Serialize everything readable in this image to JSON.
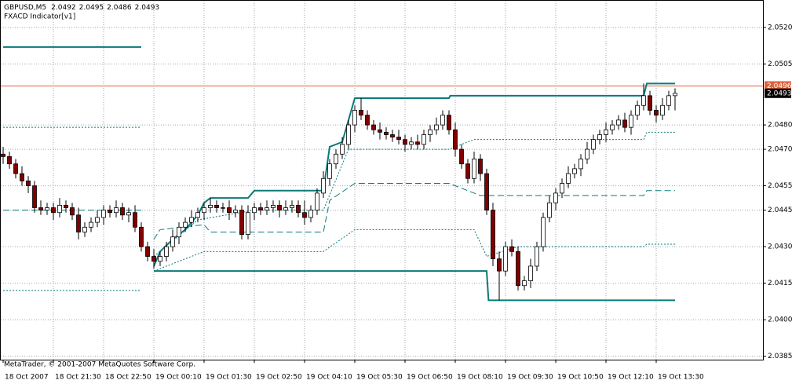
{
  "chart_data": {
    "type": "candlestick",
    "symbol": "GBPUSD,M5",
    "indicator": "FXACD Indicator[v1]",
    "footer": "MetaTrader, © 2001-2007 MetaQuotes Software Corp.",
    "categories": [
      "18 Oct 2007",
      null,
      null,
      null,
      null,
      null,
      null,
      null,
      "18 Oct 21:30",
      null,
      null,
      null,
      null,
      null,
      null,
      null,
      "18 Oct 22:50",
      null,
      null,
      null,
      null,
      null,
      null,
      null,
      "19 Oct 00:10",
      null,
      null,
      null,
      null,
      null,
      null,
      null,
      "19 Oct 01:30",
      null,
      null,
      null,
      null,
      null,
      null,
      null,
      "19 Oct 02:50",
      null,
      null,
      null,
      null,
      null,
      null,
      null,
      "19 Oct 04:10",
      null,
      null,
      null,
      null,
      null,
      null,
      null,
      "19 Oct 05:30",
      null,
      null,
      null,
      null,
      null,
      null,
      null,
      "19 Oct 06:50",
      null,
      null,
      null,
      null,
      null,
      null,
      null,
      "19 Oct 08:10",
      null,
      null,
      null,
      null,
      null,
      null,
      null,
      "19 Oct 09:30",
      null,
      null,
      null,
      null,
      null,
      null,
      null,
      "19 Oct 10:50",
      null,
      null,
      null,
      null,
      null,
      null,
      null,
      "19 Oct 12:10",
      null,
      null,
      null,
      null,
      null,
      null,
      null,
      "19 Oct 13:30",
      null,
      null,
      null
    ],
    "open": [
      2.0468,
      2.0467,
      2.0464,
      2.046,
      2.0457,
      2.0455,
      2.0446,
      2.0445,
      2.0446,
      2.0444,
      2.0447,
      2.0446,
      2.0443,
      2.0436,
      2.0438,
      2.044,
      2.0442,
      2.0445,
      2.0444,
      2.0446,
      2.0443,
      2.0444,
      2.0438,
      2.043,
      2.0426,
      2.0424,
      2.0426,
      2.043,
      2.0434,
      2.0438,
      2.044,
      2.0442,
      2.0444,
      2.0446,
      2.0447,
      2.0446,
      2.0446,
      2.0444,
      2.0445,
      2.0435,
      2.0444,
      2.0446,
      2.0445,
      2.0446,
      2.0447,
      2.0445,
      2.0446,
      2.0447,
      2.0444,
      2.0442,
      2.0445,
      2.0452,
      2.0458,
      2.0464,
      2.0468,
      2.0472,
      2.048,
      2.0486,
      2.0484,
      2.048,
      2.0478,
      2.0477,
      2.0476,
      2.0475,
      2.0474,
      2.0472,
      2.0473,
      2.0472,
      2.0476,
      2.0478,
      2.048,
      2.0484,
      2.0478,
      2.047,
      2.0464,
      2.0458,
      2.0466,
      2.046,
      2.0445,
      2.0425,
      2.042,
      2.043,
      2.0428,
      2.0414,
      2.0416,
      2.0422,
      2.043,
      2.0442,
      2.0448,
      2.0452,
      2.0456,
      2.046,
      2.0462,
      2.0466,
      2.047,
      2.0474,
      2.0476,
      2.0478,
      2.048,
      2.0482,
      2.0479,
      2.0484,
      2.0488,
      2.0492,
      2.0486,
      2.0484,
      2.0488,
      2.0492
    ],
    "high": [
      2.0471,
      2.0469,
      2.0466,
      2.0463,
      2.0459,
      2.0457,
      2.0449,
      2.0448,
      2.0448,
      2.045,
      2.0449,
      2.0448,
      2.0446,
      2.044,
      2.0442,
      2.0445,
      2.0447,
      2.0447,
      2.0449,
      2.0448,
      2.0446,
      2.0447,
      2.044,
      2.0432,
      2.0429,
      2.0428,
      2.0432,
      2.0437,
      2.044,
      2.0442,
      2.0445,
      2.0446,
      2.0448,
      2.045,
      2.0449,
      2.0448,
      2.0449,
      2.0447,
      2.0447,
      2.0447,
      2.0448,
      2.0448,
      2.0449,
      2.0449,
      2.0449,
      2.0449,
      2.0449,
      2.0449,
      2.0449,
      2.0447,
      2.0454,
      2.0461,
      2.0466,
      2.047,
      2.0475,
      2.0482,
      2.0488,
      2.0491,
      2.0486,
      2.0482,
      2.0481,
      2.0479,
      2.0478,
      2.0478,
      2.0476,
      2.0475,
      2.0476,
      2.0478,
      2.048,
      2.0483,
      2.0486,
      2.0486,
      2.0481,
      2.0472,
      2.0466,
      2.0469,
      2.0468,
      2.0462,
      2.0448,
      2.0428,
      2.0432,
      2.0433,
      2.043,
      2.0418,
      2.0425,
      2.0432,
      2.0444,
      2.0451,
      2.0454,
      2.0458,
      2.0463,
      2.0464,
      2.0468,
      2.0473,
      2.0476,
      2.0478,
      2.0481,
      2.0482,
      2.0484,
      2.0485,
      2.0486,
      2.049,
      2.0497,
      2.0494,
      2.0488,
      2.0491,
      2.0494,
      2.0495
    ],
    "low": [
      2.0464,
      2.0462,
      2.0458,
      2.0455,
      2.0452,
      2.0444,
      2.0443,
      2.0443,
      2.0441,
      2.0442,
      2.0444,
      2.0441,
      2.0433,
      2.0434,
      2.0436,
      2.0438,
      2.0439,
      2.0442,
      2.0442,
      2.0441,
      2.044,
      2.0436,
      2.0428,
      2.0424,
      2.0421,
      2.0422,
      2.0424,
      2.0428,
      2.0431,
      2.0436,
      2.0438,
      2.044,
      2.0441,
      2.0444,
      2.0444,
      2.0444,
      2.0441,
      2.0442,
      2.0433,
      2.0433,
      2.0441,
      2.0443,
      2.0443,
      2.0444,
      2.0442,
      2.0443,
      2.0444,
      2.0442,
      2.0439,
      2.044,
      2.0443,
      2.045,
      2.0455,
      2.0462,
      2.0466,
      2.047,
      2.0477,
      2.0482,
      2.0478,
      2.0476,
      2.0474,
      2.0474,
      2.0473,
      2.0472,
      2.0469,
      2.047,
      2.047,
      2.047,
      2.0473,
      2.0476,
      2.0478,
      2.0476,
      2.0467,
      2.0462,
      2.0456,
      2.0456,
      2.0457,
      2.0443,
      2.0422,
      2.0408,
      2.0418,
      2.0426,
      2.0412,
      2.0412,
      2.0413,
      2.042,
      2.0428,
      2.044,
      2.0445,
      2.045,
      2.0454,
      2.0458,
      2.0459,
      2.0464,
      2.0468,
      2.0472,
      2.0473,
      2.0476,
      2.0478,
      2.0477,
      2.0476,
      2.0482,
      2.0486,
      2.0484,
      2.0481,
      2.0482,
      2.0486,
      2.0486
    ],
    "close": [
      2.0467,
      2.0464,
      2.046,
      2.0457,
      2.0455,
      2.0446,
      2.0445,
      2.0446,
      2.0444,
      2.0447,
      2.0446,
      2.0443,
      2.0436,
      2.0438,
      2.044,
      2.0442,
      2.0445,
      2.0444,
      2.0446,
      2.0443,
      2.0444,
      2.0438,
      2.043,
      2.0426,
      2.0424,
      2.0426,
      2.043,
      2.0434,
      2.0438,
      2.044,
      2.0442,
      2.0444,
      2.0446,
      2.0447,
      2.0446,
      2.0446,
      2.0444,
      2.0445,
      2.0435,
      2.0444,
      2.0446,
      2.0445,
      2.0446,
      2.0447,
      2.0445,
      2.0446,
      2.0447,
      2.0444,
      2.0442,
      2.0445,
      2.0452,
      2.0458,
      2.0464,
      2.0468,
      2.0472,
      2.048,
      2.0486,
      2.0484,
      2.048,
      2.0478,
      2.0477,
      2.0476,
      2.0475,
      2.0474,
      2.0472,
      2.0473,
      2.0472,
      2.0476,
      2.0478,
      2.048,
      2.0484,
      2.0478,
      2.047,
      2.0464,
      2.0458,
      2.0466,
      2.046,
      2.0445,
      2.0425,
      2.042,
      2.043,
      2.0428,
      2.0414,
      2.0416,
      2.0422,
      2.043,
      2.0442,
      2.0448,
      2.0452,
      2.0456,
      2.046,
      2.0462,
      2.0466,
      2.047,
      2.0474,
      2.0476,
      2.0478,
      2.048,
      2.0482,
      2.0479,
      2.0484,
      2.0488,
      2.0492,
      2.0486,
      2.0484,
      2.0488,
      2.0492,
      2.0493
    ],
    "up_color": "#ffffff",
    "down_color": "#800000",
    "ask": 2.0496,
    "ask_color": "#e0613a",
    "lines": [
      {
        "style": "solid",
        "color": "#0a7a78",
        "x": [
          0,
          22,
          null,
          24,
          25,
          27,
          29,
          31,
          32,
          33,
          39,
          40,
          51,
          52,
          54,
          55,
          56,
          71,
          71.2,
          102,
          102.5,
          107
        ],
        "values": [
          2.0512,
          2.0512,
          null,
          2.0422,
          2.0428,
          2.0433,
          2.0437,
          2.0443,
          2.0448,
          2.045,
          2.045,
          2.0453,
          2.0453,
          2.0471,
          2.0473,
          2.0482,
          2.0491,
          2.0491,
          2.0492,
          2.0492,
          2.0497,
          2.0497
        ]
      },
      {
        "style": "solid",
        "color": "#0a7a78",
        "x": [
          24,
          77,
          77.3,
          107
        ],
        "values": [
          2.042,
          2.042,
          2.0408,
          2.0408
        ]
      },
      {
        "style": "dotted",
        "color": "#0a7a78",
        "x": [
          0,
          22,
          null,
          0,
          22,
          null,
          24,
          31,
          40,
          51,
          55,
          71,
          75,
          102,
          102.5,
          107,
          null,
          24,
          32,
          51,
          56,
          75,
          77,
          82,
          102,
          102.5,
          107
        ],
        "values": [
          2.0479,
          2.0479,
          null,
          2.0412,
          2.0412,
          null,
          2.0426,
          2.0441,
          2.0445,
          2.0445,
          2.047,
          2.047,
          2.0474,
          2.0474,
          2.0477,
          2.0477,
          null,
          2.042,
          2.0428,
          2.0428,
          2.0437,
          2.0437,
          2.0426,
          2.043,
          2.043,
          2.0431,
          2.0431
        ]
      },
      {
        "style": "dashed",
        "color": "#0a7a78",
        "x": [
          0,
          22,
          null,
          24,
          25,
          32,
          33,
          51,
          52,
          56,
          71,
          76,
          102,
          102.5,
          107
        ],
        "values": [
          2.0445,
          2.0445,
          null,
          2.0433,
          2.0437,
          2.0439,
          2.0436,
          2.0436,
          2.0449,
          2.0456,
          2.0456,
          2.0451,
          2.0451,
          2.0453,
          2.0453
        ]
      }
    ],
    "ylim": [
      2.03836,
      2.05313
    ],
    "yticks": [
      {
        "value": 2.052,
        "label": "2.0520"
      },
      {
        "value": 2.0505,
        "label": "2.0505"
      },
      {
        "value": 2.048,
        "label": "2.0480"
      },
      {
        "value": 2.047,
        "label": "2.0470"
      },
      {
        "value": 2.0455,
        "label": "2.0455"
      },
      {
        "value": 2.0445,
        "label": "2.0445"
      },
      {
        "value": 2.043,
        "label": "2.0430"
      },
      {
        "value": 2.0415,
        "label": "2.0415"
      },
      {
        "value": 2.04,
        "label": "2.0400"
      },
      {
        "value": 2.0385,
        "label": "2.0385"
      }
    ],
    "grid": true
  }
}
